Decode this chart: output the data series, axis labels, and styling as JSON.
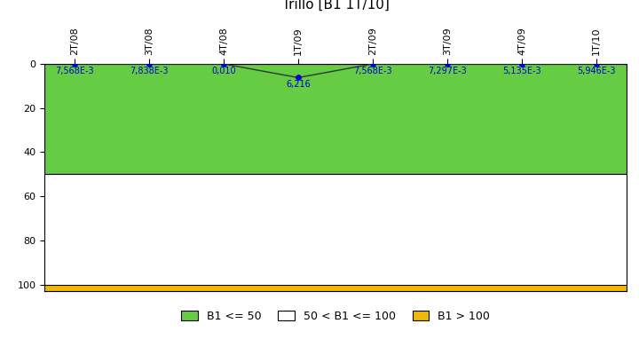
{
  "title": "Trillo [B1 1T/10]",
  "x_labels": [
    "2T/08",
    "3T/08",
    "4T/08",
    "1T/09",
    "2T/09",
    "3T/09",
    "4T/09",
    "1T/10"
  ],
  "x_values": [
    0,
    1,
    2,
    3,
    4,
    5,
    6,
    7
  ],
  "y_values": [
    0.007568,
    0.007838,
    0.01,
    6.216,
    0.007568,
    0.007297,
    0.005135,
    0.005946
  ],
  "y_labels": [
    "7,568E-3",
    "7,838E-3",
    "0,010",
    "6,216",
    "7,568E-3",
    "7,297E-3",
    "5,135E-3",
    "5,946E-3"
  ],
  "ylim_min": 0,
  "ylim_max": 103,
  "green_region": [
    0,
    50
  ],
  "white_region": [
    50,
    100
  ],
  "yellow_region": [
    100,
    103
  ],
  "green_color": "#66cc44",
  "white_color": "#ffffff",
  "yellow_color": "#f0b800",
  "line_color": "#333333",
  "dot_color": "#0000cc",
  "label_color": "#0000cc",
  "background_color": "#ffffff",
  "title_fontsize": 11,
  "legend_labels": [
    "B1 <= 50",
    "50 < B1 <= 100",
    "B1 > 100"
  ],
  "legend_colors": [
    "#66cc44",
    "#ffffff",
    "#f0b800"
  ]
}
